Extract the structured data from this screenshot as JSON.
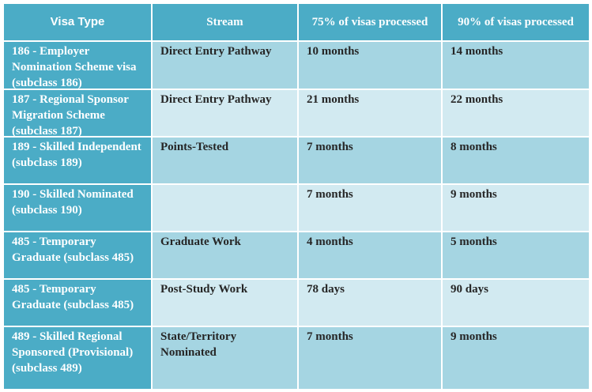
{
  "table": {
    "header": [
      "Visa Type",
      "Stream",
      "75% of visas processed",
      "90% of visas processed"
    ],
    "rows": [
      [
        "186 - Employer Nomination Scheme visa (subclass 186)",
        "Direct Entry Pathway",
        "10 months",
        "14 months"
      ],
      [
        "187 - Regional Sponsor Migration Scheme (subclass 187)",
        "Direct Entry Pathway",
        "21 months",
        "22 months"
      ],
      [
        "189 - Skilled Independent (subclass 189)",
        "Points-Tested",
        "7 months",
        "8 months"
      ],
      [
        "190 - Skilled Nominated (subclass 190)",
        null,
        "7 months",
        "9 months"
      ],
      [
        "485 - Temporary Graduate (subclass 485)",
        "Graduate Work",
        "4 months",
        "5 months"
      ],
      [
        "485 - Temporary Graduate (subclass 485)",
        "Post-Study Work",
        "78 days",
        "90 days"
      ],
      [
        "489 - Skilled Regional Sponsored (Provisional) (subclass 489)",
        "State/Territory Nominated",
        "7 months",
        "9 months"
      ]
    ]
  }
}
